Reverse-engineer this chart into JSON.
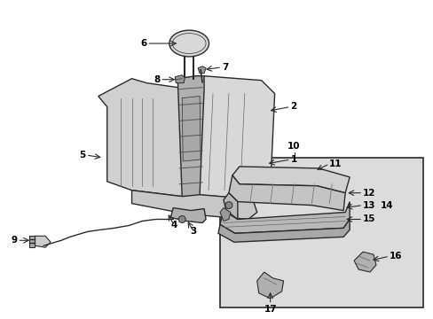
{
  "background_color": "#ffffff",
  "line_color": "#2a2a2a",
  "fig_width": 4.89,
  "fig_height": 3.6,
  "dpi": 100,
  "seat_fill": "#d4d4d4",
  "seat_fill2": "#c8c8c8",
  "spine_fill": "#b8b8b8",
  "box_fill": "#dcdcdc",
  "cushion_fill": "#cccccc",
  "rail_fill": "#b0b0b0",
  "bracket_fill": "#a8a8a8",
  "dark_fill": "#888888",
  "label_fs": 7.5,
  "label_fw": "bold"
}
